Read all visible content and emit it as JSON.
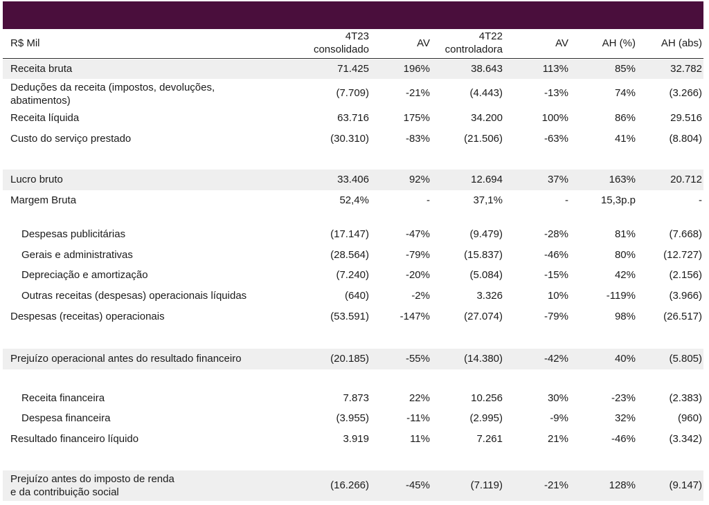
{
  "header": {
    "label": "R$ Mil",
    "col1": [
      "4T23",
      "consolidado"
    ],
    "col2": "AV",
    "col3": [
      "4T22",
      "controladora"
    ],
    "col4": "AV",
    "col5": "AH (%)",
    "col6": "AH (abs)"
  },
  "colors": {
    "topbar": "#4a0e3c",
    "shade": "#efefef"
  },
  "rows": [
    {
      "label": "Receita bruta",
      "v": [
        "71.425",
        "196%",
        "38.643",
        "113%",
        "85%",
        "32.782"
      ]
    },
    {
      "label": [
        "Deduções da receita (impostos, devoluções,",
        "abatimentos)"
      ],
      "v": [
        "(7.709)",
        "-21%",
        "(4.443)",
        "-13%",
        "74%",
        "(3.266)"
      ]
    },
    {
      "label": "Receita líquida",
      "v": [
        "63.716",
        "175%",
        "34.200",
        "100%",
        "86%",
        "29.516"
      ]
    },
    {
      "label": "Custo do serviço prestado",
      "v": [
        "(30.310)",
        "-83%",
        "(21.506)",
        "-63%",
        "41%",
        "(8.804)"
      ]
    },
    {
      "label": "Lucro bruto",
      "v": [
        "33.406",
        "92%",
        "12.694",
        "37%",
        "163%",
        "20.712"
      ]
    },
    {
      "label": "Margem Bruta",
      "v": [
        "52,4%",
        "-",
        "37,1%",
        "-",
        "15,3p.p",
        "-"
      ]
    },
    {
      "label": "Despesas publicitárias",
      "v": [
        "(17.147)",
        "-47%",
        "(9.479)",
        "-28%",
        "81%",
        "(7.668)"
      ]
    },
    {
      "label": "Gerais e administrativas",
      "v": [
        "(28.564)",
        "-79%",
        "(15.837)",
        "-46%",
        "80%",
        "(12.727)"
      ]
    },
    {
      "label": "Depreciação e amortização",
      "v": [
        "(7.240)",
        "-20%",
        "(5.084)",
        "-15%",
        "42%",
        "(2.156)"
      ]
    },
    {
      "label": "Outras receitas (despesas) operacionais líquidas",
      "v": [
        "(640)",
        "-2%",
        "3.326",
        "10%",
        "-119%",
        "(3.966)"
      ]
    },
    {
      "label": "Despesas (receitas) operacionais",
      "v": [
        "(53.591)",
        "-147%",
        "(27.074)",
        "-79%",
        "98%",
        "(26.517)"
      ]
    },
    {
      "label": "Prejuízo operacional antes do resultado financeiro",
      "v": [
        "(20.185)",
        "-55%",
        "(14.380)",
        "-42%",
        "40%",
        "(5.805)"
      ]
    },
    {
      "label": "Receita financeira",
      "v": [
        "7.873",
        "22%",
        "10.256",
        "30%",
        "-23%",
        "(2.383)"
      ]
    },
    {
      "label": "Despesa financeira",
      "v": [
        "(3.955)",
        "-11%",
        "(2.995)",
        "-9%",
        "32%",
        "(960)"
      ]
    },
    {
      "label": "Resultado financeiro líquido",
      "v": [
        "3.919",
        "11%",
        "7.261",
        "21%",
        "-46%",
        "(3.342)"
      ]
    },
    {
      "label": [
        "Prejuízo antes do imposto de renda",
        "e da contribuição social"
      ],
      "v": [
        "(16.266)",
        "-45%",
        "(7.119)",
        "-21%",
        "128%",
        "(9.147)"
      ]
    }
  ]
}
